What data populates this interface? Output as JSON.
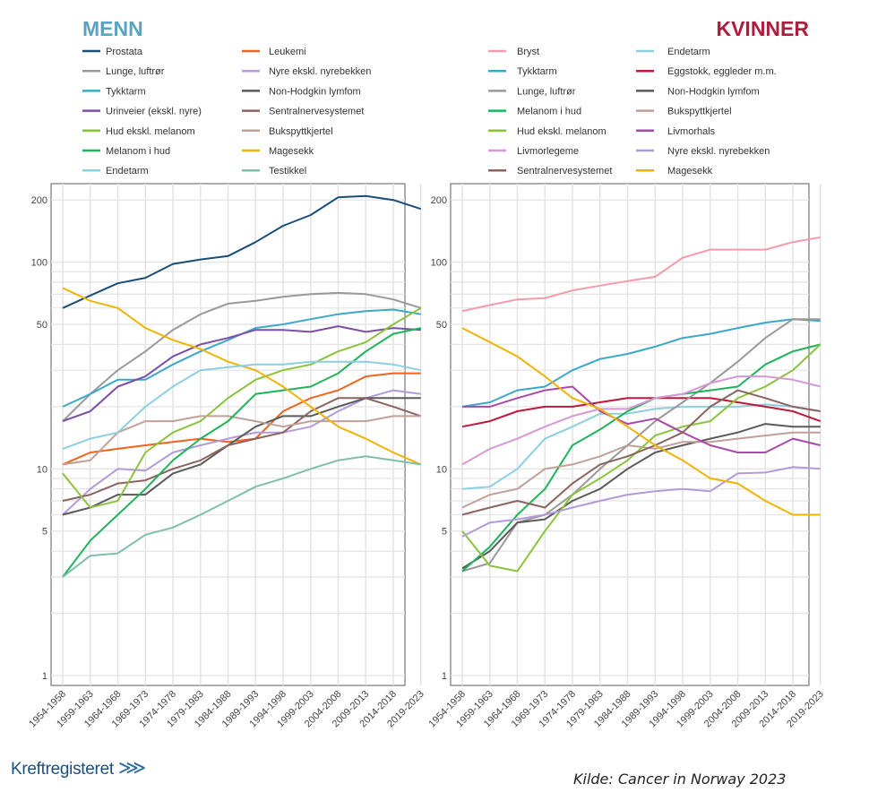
{
  "logo_text": "Kreftregisteret",
  "source": "Kilde: Cancer in Norway 2023",
  "chart_data": [
    {
      "type": "line",
      "title": "MENN",
      "title_color": "#5ba3c0",
      "yscale": "log",
      "ylim": [
        0.9,
        250
      ],
      "yticks": [
        1,
        5,
        10,
        50,
        100,
        200
      ],
      "grid": true,
      "legend": "top",
      "categories": [
        "1954-1958",
        "1959-1963",
        "1964-1968",
        "1969-1973",
        "1974-1978",
        "1979-1983",
        "1984-1988",
        "1989-1993",
        "1994-1998",
        "1999-2003",
        "2004-2008",
        "2009-2013",
        "2014-2018",
        "2019-2023"
      ],
      "series": [
        {
          "name": "Prostata",
          "color": "#1a4e78",
          "values": [
            60,
            69,
            79,
            84,
            98,
            103,
            107,
            125,
            150,
            169,
            206,
            209,
            200,
            181
          ]
        },
        {
          "name": "Leukemi",
          "color": "#f4621c",
          "values": [
            10.5,
            12,
            12.5,
            13,
            13.5,
            14,
            13.5,
            14,
            19,
            22,
            24,
            28,
            29,
            29
          ]
        },
        {
          "name": "Lunge, luftrør",
          "color": "#999999",
          "values": [
            17,
            23,
            30,
            37,
            47,
            56,
            63,
            65,
            68,
            70,
            71,
            70,
            66,
            60
          ]
        },
        {
          "name": "Nyre ekskl. nyrebekken",
          "color": "#b49ad8",
          "values": [
            6,
            8,
            10,
            9.8,
            12,
            13,
            14,
            15,
            15,
            16,
            19,
            22,
            24,
            23
          ]
        },
        {
          "name": "Tykktarm",
          "color": "#3ba8c8",
          "values": [
            20,
            23,
            27,
            27,
            32,
            37,
            42,
            48,
            50,
            53,
            56,
            58,
            59,
            56
          ]
        },
        {
          "name": "Non-Hodgkin lymfom",
          "color": "#5a5a5a",
          "values": [
            6,
            6.5,
            7.5,
            7.5,
            9.5,
            10.5,
            13,
            16,
            18,
            18,
            20,
            22,
            22,
            22
          ]
        },
        {
          "name": "Urinveier (ekskl. nyre)",
          "color": "#7b4fa8",
          "values": [
            17,
            19,
            25,
            28,
            35,
            40,
            43,
            47,
            47,
            46,
            49,
            46,
            48,
            47
          ]
        },
        {
          "name": "Sentralnervesystemet",
          "color": "#8a6460",
          "values": [
            7,
            7.5,
            8.5,
            8.8,
            10,
            11,
            13,
            14,
            15,
            19,
            22,
            22,
            20,
            18
          ]
        },
        {
          "name": "Hud ekskl. melanom",
          "color": "#8ac43c",
          "values": [
            9.5,
            6.5,
            7,
            12,
            15,
            17,
            22,
            27,
            30,
            32,
            37,
            41,
            50,
            60
          ]
        },
        {
          "name": "Bukspyttkjertel",
          "color": "#c0a098",
          "values": [
            10.5,
            11,
            15,
            17,
            17,
            18,
            18,
            17,
            16,
            17,
            17,
            17,
            18,
            18
          ]
        },
        {
          "name": "Melanom i hud",
          "color": "#1db45a",
          "values": [
            3,
            4.5,
            6,
            8,
            11,
            14,
            17,
            23,
            24,
            25,
            29,
            37,
            45,
            48
          ]
        },
        {
          "name": "Magesekk",
          "color": "#f0b400",
          "values": [
            75,
            65,
            60,
            48,
            42,
            38,
            33,
            30,
            25,
            20,
            16,
            14,
            12,
            10.5
          ]
        },
        {
          "name": "Endetarm",
          "color": "#8ccfe0",
          "values": [
            12.5,
            14,
            15,
            20,
            25,
            30,
            31,
            32,
            32,
            33,
            33,
            33,
            32,
            30
          ]
        },
        {
          "name": "Testikkel",
          "color": "#7fbfa8",
          "values": [
            3,
            3.8,
            3.9,
            4.8,
            5.2,
            6,
            7,
            8.2,
            9,
            10,
            11,
            11.5,
            11,
            10.5
          ]
        }
      ]
    },
    {
      "type": "line",
      "title": "KVINNER",
      "title_color": "#b01c3c",
      "yscale": "log",
      "ylim": [
        0.9,
        250
      ],
      "yticks": [
        1,
        5,
        10,
        50,
        100,
        200
      ],
      "grid": true,
      "legend": "top",
      "categories": [
        "1954-1958",
        "1959-1963",
        "1964-1968",
        "1969-1973",
        "1974-1978",
        "1979-1983",
        "1984-1988",
        "1989-1993",
        "1994-1998",
        "1999-2003",
        "2004-2008",
        "2009-2013",
        "2014-2018",
        "2019-2023"
      ],
      "series": [
        {
          "name": "Bryst",
          "color": "#f59aa8",
          "values": [
            58,
            62,
            66,
            67,
            73,
            77,
            81,
            85,
            105,
            115,
            115,
            115,
            125,
            132
          ]
        },
        {
          "name": "Endetarm",
          "color": "#8ccfe0",
          "values": [
            8,
            8.2,
            10,
            14,
            16,
            18.5,
            18.5,
            19.5,
            20,
            20,
            20,
            20.5,
            20,
            19
          ]
        },
        {
          "name": "Tykktarm",
          "color": "#3ba8c8",
          "values": [
            20,
            21,
            24,
            25,
            30,
            34,
            36,
            39,
            43,
            45,
            48,
            51,
            53,
            52
          ]
        },
        {
          "name": "Eggstokk, eggleder m.m.",
          "color": "#c0183c",
          "values": [
            16,
            17,
            19,
            20,
            20,
            21,
            22,
            22,
            22,
            22,
            21,
            20,
            19,
            17
          ]
        },
        {
          "name": "Lunge, luftrør",
          "color": "#999999",
          "values": [
            3.2,
            3.5,
            5.5,
            6,
            7.5,
            10,
            13,
            17,
            21,
            26,
            33,
            43,
            53,
            53
          ]
        },
        {
          "name": "Non-Hodgkin lymfom",
          "color": "#5a5a5a",
          "values": [
            3.3,
            4,
            5.5,
            5.7,
            7,
            8,
            10,
            12,
            13,
            14,
            15,
            16.5,
            16,
            16
          ]
        },
        {
          "name": "Melanom i hud",
          "color": "#1db45a",
          "values": [
            3.2,
            4.2,
            6,
            8,
            13,
            15.5,
            19,
            22,
            23,
            24,
            25,
            32,
            37,
            40
          ]
        },
        {
          "name": "Bukspyttkjertel",
          "color": "#c0a098",
          "values": [
            6.5,
            7.5,
            8,
            10,
            10.5,
            11.5,
            13,
            12.5,
            13.5,
            13.5,
            14,
            14.5,
            15,
            15
          ]
        },
        {
          "name": "Hud ekskl. melanom",
          "color": "#8ac43c",
          "values": [
            5,
            3.4,
            3.2,
            5,
            7.5,
            9,
            11,
            14.5,
            16,
            17,
            22,
            25,
            30,
            40
          ]
        },
        {
          "name": "Livmorhals",
          "color": "#a84aa8",
          "values": [
            20,
            20,
            22,
            24,
            25,
            19,
            16.5,
            17.5,
            15,
            13,
            12,
            12,
            14,
            13
          ]
        },
        {
          "name": "Livmorlegeme",
          "color": "#d898d8",
          "values": [
            10.5,
            12.5,
            14,
            16,
            18,
            19.5,
            19.5,
            22,
            23,
            26,
            28,
            28,
            27,
            25
          ]
        },
        {
          "name": "Nyre ekskl. nyrebekken",
          "color": "#b49ad8",
          "values": [
            4.7,
            5.5,
            5.7,
            6,
            6.5,
            7,
            7.5,
            7.8,
            8,
            7.8,
            9.5,
            9.6,
            10.2,
            10
          ]
        },
        {
          "name": "Sentralnervesystemet",
          "color": "#8a6460",
          "values": [
            6,
            6.5,
            7,
            6.5,
            8.5,
            10.5,
            11.5,
            13,
            15,
            20,
            24,
            22,
            20,
            19
          ]
        },
        {
          "name": "Magesekk",
          "color": "#f0b400",
          "values": [
            48,
            41,
            35,
            28,
            22,
            19.5,
            16,
            13,
            11,
            9,
            8.5,
            7,
            6,
            6
          ]
        }
      ]
    }
  ]
}
